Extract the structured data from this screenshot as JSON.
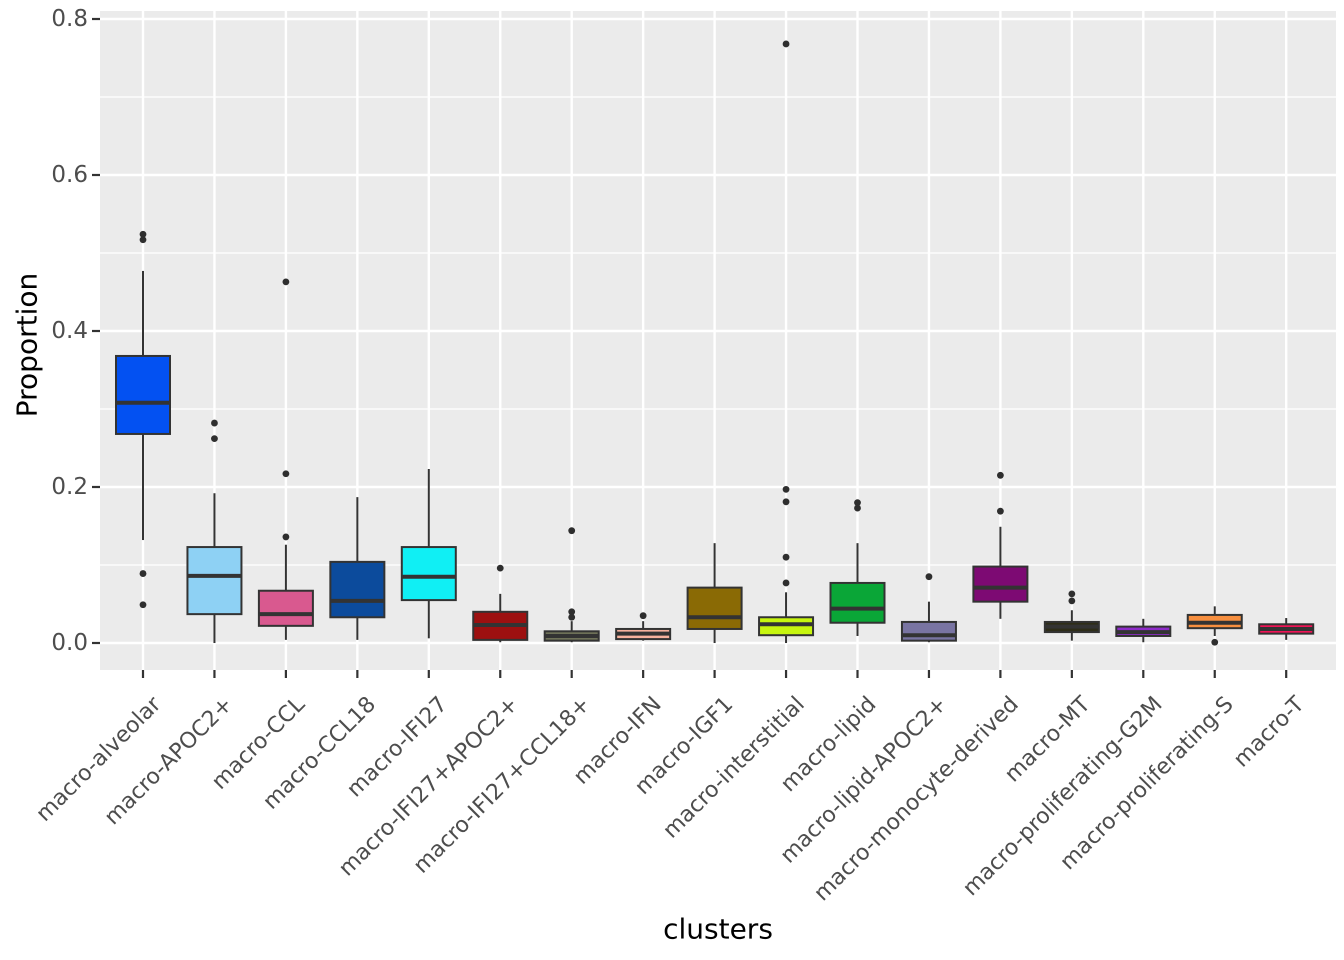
{
  "chart_data": {
    "type": "box",
    "title": "",
    "xlabel": "clusters",
    "ylabel": "Proportion",
    "ylim": [
      -0.035,
      0.81
    ],
    "y_major_ticks": [
      0.0,
      0.2,
      0.4,
      0.6,
      0.8
    ],
    "y_tick_labels": [
      "0.0",
      "0.2",
      "0.4",
      "0.6",
      "0.8"
    ],
    "y_minor_ticks": [
      0.1,
      0.3,
      0.5,
      0.7
    ],
    "grid": true,
    "legend": false,
    "boxes": [
      {
        "label": "macro-alveolar",
        "color": "#0351F2",
        "whisker_low": 0.132,
        "q1": 0.268,
        "median": 0.308,
        "q3": 0.368,
        "whisker_high": 0.477,
        "outliers": [
          0.524,
          0.517,
          0.089,
          0.049
        ]
      },
      {
        "label": "macro-APOC2+",
        "color": "#8ED1F4",
        "whisker_low": 0.0,
        "q1": 0.037,
        "median": 0.086,
        "q3": 0.123,
        "whisker_high": 0.192,
        "outliers": [
          0.282,
          0.262
        ]
      },
      {
        "label": "macro-CCL",
        "color": "#D9598F",
        "whisker_low": 0.004,
        "q1": 0.022,
        "median": 0.037,
        "q3": 0.067,
        "whisker_high": 0.126,
        "outliers": [
          0.463,
          0.217,
          0.136
        ]
      },
      {
        "label": "macro-CCL18",
        "color": "#0C4B9C",
        "whisker_low": 0.004,
        "q1": 0.033,
        "median": 0.054,
        "q3": 0.104,
        "whisker_high": 0.187,
        "outliers": []
      },
      {
        "label": "macro-IFI27",
        "color": "#10EFF4",
        "whisker_low": 0.006,
        "q1": 0.055,
        "median": 0.085,
        "q3": 0.123,
        "whisker_high": 0.223,
        "outliers": []
      },
      {
        "label": "macro-IFI27+APOC2+",
        "color": "#9D1010",
        "whisker_low": 0.001,
        "q1": 0.004,
        "median": 0.023,
        "q3": 0.04,
        "whisker_high": 0.063,
        "outliers": [
          0.096
        ]
      },
      {
        "label": "macro-IFI27+CCL18+",
        "color": "#6E7158",
        "whisker_low": 0.001,
        "q1": 0.003,
        "median": 0.009,
        "q3": 0.015,
        "whisker_high": 0.028,
        "outliers": [
          0.144,
          0.04,
          0.033
        ]
      },
      {
        "label": "macro-IFN",
        "color": "#F6B29E",
        "whisker_low": 0.003,
        "q1": 0.005,
        "median": 0.012,
        "q3": 0.018,
        "whisker_high": 0.028,
        "outliers": [
          0.035
        ]
      },
      {
        "label": "macro-IGF1",
        "color": "#8A6A05",
        "whisker_low": 0.0,
        "q1": 0.018,
        "median": 0.033,
        "q3": 0.071,
        "whisker_high": 0.128,
        "outliers": []
      },
      {
        "label": "macro-interstitial",
        "color": "#C7F50F",
        "whisker_low": 0.0,
        "q1": 0.01,
        "median": 0.024,
        "q3": 0.033,
        "whisker_high": 0.065,
        "outliers": [
          0.768,
          0.197,
          0.181,
          0.11,
          0.077
        ]
      },
      {
        "label": "macro-lipid",
        "color": "#0AA637",
        "whisker_low": 0.009,
        "q1": 0.026,
        "median": 0.044,
        "q3": 0.077,
        "whisker_high": 0.128,
        "outliers": [
          0.18,
          0.173
        ]
      },
      {
        "label": "macro-lipid-APOC2+",
        "color": "#7974A2",
        "whisker_low": 0.001,
        "q1": 0.003,
        "median": 0.01,
        "q3": 0.027,
        "whisker_high": 0.053,
        "outliers": [
          0.085
        ]
      },
      {
        "label": "macro-monocyte-derived",
        "color": "#7D0A73",
        "whisker_low": 0.031,
        "q1": 0.053,
        "median": 0.071,
        "q3": 0.098,
        "whisker_high": 0.149,
        "outliers": [
          0.215,
          0.169
        ]
      },
      {
        "label": "macro-MT",
        "color": "#2E2D18",
        "whisker_low": 0.003,
        "q1": 0.014,
        "median": 0.021,
        "q3": 0.027,
        "whisker_high": 0.042,
        "outliers": [
          0.063,
          0.054
        ]
      },
      {
        "label": "macro-proliferating-G2M",
        "color": "#8E2BC9",
        "whisker_low": 0.001,
        "q1": 0.009,
        "median": 0.014,
        "q3": 0.021,
        "whisker_high": 0.031,
        "outliers": []
      },
      {
        "label": "macro-proliferating-S",
        "color": "#F78F3F",
        "whisker_low": 0.009,
        "q1": 0.019,
        "median": 0.026,
        "q3": 0.036,
        "whisker_high": 0.047,
        "outliers": [
          0.001
        ]
      },
      {
        "label": "macro-T",
        "color": "#F01356",
        "whisker_low": 0.004,
        "q1": 0.012,
        "median": 0.018,
        "q3": 0.024,
        "whisker_high": 0.032,
        "outliers": []
      }
    ]
  },
  "style": {
    "figure_bg": "#FFFFFF",
    "panel_bg": "#EBEBEB",
    "grid_color": "#FFFFFF",
    "box_border": "#333333",
    "median_color": "#333333",
    "whisker_color": "#333333",
    "outlier_color": "#2E2E2E",
    "tick_color": "#333333",
    "tick_label_color": "#4D4D4D",
    "axis_title_color": "#000000"
  }
}
